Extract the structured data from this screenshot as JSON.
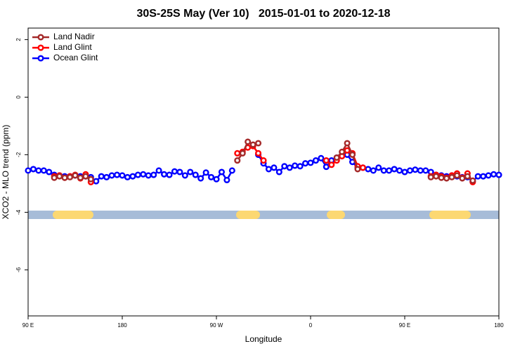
{
  "chart_data": {
    "type": "line",
    "title": "30S-25S May (Ver 10)   2015-01-01 to 2020-12-18",
    "x_label": "Longitude",
    "y_label": "XCO2 - MLO trend (ppm)",
    "xlim": [
      90,
      540
    ],
    "ylim": [
      -7.6,
      2.4
    ],
    "xticks": [
      {
        "value": 90,
        "label": "90 E"
      },
      {
        "value": 180,
        "label": "180"
      },
      {
        "value": 270,
        "label": "90 W"
      },
      {
        "value": 360,
        "label": "0"
      },
      {
        "value": 450,
        "label": "90 E"
      },
      {
        "value": 540,
        "label": "180"
      }
    ],
    "yticks": [
      2,
      0,
      -2,
      -4,
      -6
    ],
    "legend": "top-left",
    "x": [
      90,
      95,
      100,
      105,
      110,
      115,
      120,
      125,
      130,
      135,
      140,
      145,
      150,
      155,
      160,
      165,
      170,
      175,
      180,
      185,
      190,
      195,
      200,
      205,
      210,
      215,
      220,
      225,
      230,
      235,
      240,
      245,
      250,
      255,
      260,
      265,
      270,
      275,
      280,
      285,
      290,
      295,
      300,
      305,
      310,
      315,
      320,
      325,
      330,
      335,
      340,
      345,
      350,
      355,
      360,
      365,
      370,
      375,
      380,
      385,
      390,
      395,
      400,
      405,
      410,
      415,
      420,
      425,
      430,
      435,
      440,
      445,
      450,
      455,
      460,
      465,
      470,
      475,
      480,
      485,
      490,
      495,
      500,
      505,
      510,
      515,
      520,
      525,
      530,
      535,
      540
    ],
    "series": [
      {
        "name": "Land Nadir",
        "color": "#a52a2a",
        "values": [
          null,
          null,
          null,
          null,
          null,
          -2.8,
          -2.75,
          -2.8,
          -2.78,
          -2.72,
          -2.8,
          -2.75,
          -2.85,
          null,
          null,
          null,
          null,
          null,
          null,
          null,
          null,
          null,
          null,
          null,
          null,
          null,
          null,
          null,
          null,
          null,
          null,
          null,
          null,
          null,
          null,
          null,
          null,
          null,
          null,
          null,
          -2.2,
          -1.95,
          -1.55,
          -1.65,
          -1.6,
          null,
          null,
          null,
          null,
          null,
          null,
          null,
          null,
          null,
          null,
          null,
          null,
          null,
          null,
          -2.1,
          -1.9,
          -1.6,
          -2.0,
          -2.5,
          null,
          null,
          null,
          null,
          null,
          null,
          null,
          null,
          null,
          null,
          null,
          null,
          null,
          -2.78,
          -2.75,
          -2.8,
          -2.82,
          -2.78,
          -2.72,
          -2.82,
          -2.75,
          -2.9,
          null,
          null,
          null,
          null,
          null
        ]
      },
      {
        "name": "Land Glint",
        "color": "#ff0000",
        "values": [
          null,
          null,
          null,
          null,
          null,
          -2.75,
          -2.72,
          -2.8,
          -2.75,
          -2.7,
          -2.82,
          -2.68,
          -2.95,
          null,
          null,
          null,
          null,
          null,
          null,
          null,
          null,
          null,
          null,
          null,
          null,
          null,
          null,
          null,
          null,
          null,
          null,
          null,
          null,
          null,
          null,
          null,
          null,
          null,
          null,
          null,
          -1.95,
          -1.9,
          -1.75,
          -1.7,
          -1.95,
          -2.2,
          null,
          null,
          null,
          null,
          null,
          null,
          null,
          null,
          null,
          null,
          null,
          -2.2,
          -2.35,
          -2.2,
          -2.05,
          -1.85,
          -1.95,
          -2.4,
          -2.45,
          null,
          null,
          null,
          null,
          null,
          null,
          null,
          null,
          null,
          null,
          null,
          null,
          -2.75,
          -2.7,
          -2.75,
          -2.8,
          -2.72,
          -2.65,
          -2.8,
          -2.65,
          -2.95,
          null,
          null,
          null,
          null,
          null
        ]
      },
      {
        "name": "Ocean Glint",
        "color": "#0000ff",
        "values": [
          -2.55,
          -2.5,
          -2.55,
          -2.55,
          -2.6,
          -2.7,
          -2.72,
          -2.75,
          -2.75,
          -2.72,
          -2.75,
          -2.75,
          -2.78,
          -2.92,
          -2.75,
          -2.78,
          -2.72,
          -2.7,
          -2.72,
          -2.78,
          -2.75,
          -2.7,
          -2.68,
          -2.72,
          -2.7,
          -2.55,
          -2.68,
          -2.7,
          -2.58,
          -2.6,
          -2.72,
          -2.6,
          -2.7,
          -2.82,
          -2.62,
          -2.78,
          -2.85,
          -2.6,
          -2.88,
          -2.55,
          null,
          null,
          null,
          null,
          -2.0,
          -2.3,
          -2.5,
          -2.45,
          -2.6,
          -2.4,
          -2.45,
          -2.38,
          -2.4,
          -2.3,
          -2.28,
          -2.2,
          -2.12,
          -2.42,
          -2.2,
          -2.1,
          -2.05,
          -2.0,
          -2.25,
          -2.45,
          -2.45,
          -2.5,
          -2.55,
          -2.45,
          -2.55,
          -2.55,
          -2.5,
          -2.55,
          -2.6,
          -2.55,
          -2.52,
          -2.55,
          -2.55,
          -2.6,
          -2.7,
          -2.72,
          -2.75,
          -2.72,
          -2.75,
          -2.78,
          -2.78,
          -2.92,
          -2.75,
          -2.75,
          -2.72,
          -2.68,
          -2.7
        ]
      }
    ]
  }
}
